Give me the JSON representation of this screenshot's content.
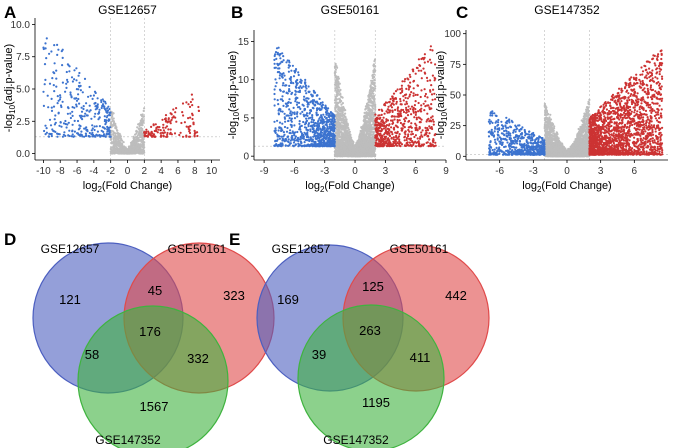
{
  "figure": {
    "panel_letters": [
      "A",
      "B",
      "C",
      "D",
      "E"
    ],
    "volcano_axis": {
      "xlabel_prefix": "log",
      "xlabel_sub": "2",
      "xlabel_suffix": "(Fold Change)",
      "ylabel_prefix": "-log",
      "ylabel_sub": "10",
      "ylabel_suffix": "(adj.p-value)"
    }
  },
  "colors": {
    "down": "#3c73cf",
    "up": "#cc3333",
    "ns": "#bdbdbd",
    "venn_a": "#4c5fc0",
    "venn_b": "#e04a4a",
    "venn_c": "#3fb33f"
  },
  "chart_data": [
    {
      "type": "scatter",
      "panel": "A",
      "title": "GSE12657",
      "xlabel": "log2(Fold Change)",
      "ylabel": "-log10(adj.p-value)",
      "xlim": [
        -11,
        11
      ],
      "ylim": [
        -0.5,
        10.5
      ],
      "xticks": [
        -10,
        -8,
        -6,
        -4,
        -2,
        0,
        2,
        4,
        6,
        8,
        10
      ],
      "yticks": [
        0,
        2.5,
        5,
        7.5,
        10
      ],
      "ytick_labels": [
        "0.0",
        "2.5",
        "5.0",
        "7.5",
        "10.0"
      ],
      "fc_threshold": 2,
      "p_threshold_line": 1.3,
      "down": {
        "xmin": -10,
        "xmax": -2,
        "ymax": 10,
        "n": 320
      },
      "up": {
        "xmin": 2,
        "xmax": 8.5,
        "ymax": 5.0,
        "n": 150
      },
      "ns": {
        "xmax": 2,
        "ymax": 3.5,
        "n": 850
      }
    },
    {
      "type": "scatter",
      "panel": "B",
      "title": "GSE50161",
      "xlabel": "log2(Fold Change)",
      "ylabel": "-log10(adj.p-value)",
      "xlim": [
        -10,
        9
      ],
      "ylim": [
        -0.5,
        16.5
      ],
      "xticks": [
        -9,
        -6,
        -3,
        0,
        3,
        6,
        9
      ],
      "yticks": [
        0,
        5,
        10,
        15
      ],
      "ytick_labels": [
        "0",
        "5",
        "10",
        "15"
      ],
      "fc_threshold": 2,
      "p_threshold_line": 1.3,
      "down": {
        "xmin": -8,
        "xmax": -2,
        "ymax": 15,
        "n": 900
      },
      "up": {
        "xmin": 2,
        "xmax": 8,
        "ymax": 15.5,
        "n": 650
      },
      "ns": {
        "xmax": 2,
        "ymax": 12,
        "n": 2400
      }
    },
    {
      "type": "scatter",
      "panel": "C",
      "title": "GSE147352",
      "xlabel": "log2(Fold Change)",
      "ylabel": "-log10(adj.p-value)",
      "xlim": [
        -9,
        9
      ],
      "ylim": [
        -3,
        103
      ],
      "xticks": [
        -6,
        -3,
        0,
        3,
        6
      ],
      "yticks": [
        0,
        25,
        50,
        75,
        100
      ],
      "ytick_labels": [
        "0",
        "25",
        "50",
        "75",
        "100"
      ],
      "fc_threshold": 2,
      "p_threshold_line": 1.3,
      "down": {
        "xmin": -7,
        "xmax": -2,
        "ymax": 40,
        "n": 600
      },
      "up": {
        "xmin": 2,
        "xmax": 8.5,
        "ymax": 90,
        "n": 1800
      },
      "ns": {
        "xmax": 2,
        "ymax": 42,
        "n": 2200
      }
    },
    {
      "type": "venn",
      "panel": "D",
      "sets": [
        "GSE12657",
        "GSE50161",
        "GSE147352"
      ],
      "regions": {
        "a": 121,
        "b": 323,
        "c": 1567,
        "ab": 45,
        "ac": 58,
        "bc": 332,
        "abc": 176
      }
    },
    {
      "type": "venn",
      "panel": "E",
      "sets": [
        "GSE12657",
        "GSE50161",
        "GSE147352"
      ],
      "regions": {
        "a": 169,
        "b": 442,
        "c": 1195,
        "ab": 125,
        "ac": 39,
        "bc": 411,
        "abc": 263
      }
    }
  ]
}
